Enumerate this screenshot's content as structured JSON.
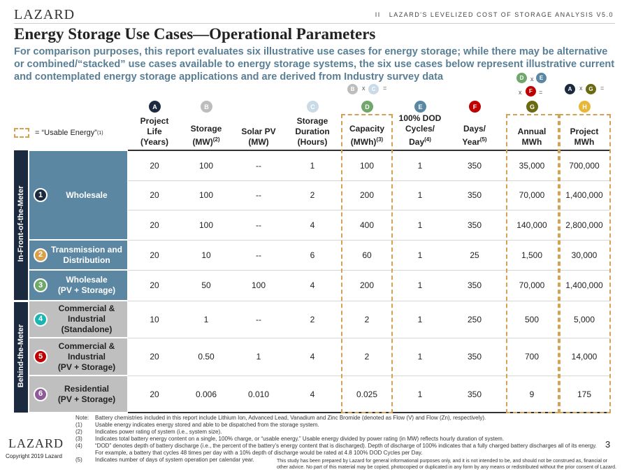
{
  "header": {
    "logo": "LAZARD",
    "section": "II   LAZARD'S LEVELIZED COST OF STORAGE ANALYSIS V5.0"
  },
  "title": "Energy Storage Use Cases—Operational Parameters",
  "subtitle": "For comparison purposes, this report evaluates six illustrative use cases for energy storage; while there may be alternative or combined/“stacked” use cases available to energy storage systems, the six use cases below represent illustrative current and contemplated energy storage applications and are derived from Industry survey data",
  "legend": {
    "label": "= “Usable Energy”",
    "sup": "(1)"
  },
  "colors": {
    "A": "#1c2a3f",
    "B": "#bdbdbd",
    "C": "#c9dbe7",
    "D": "#6fa86a",
    "E": "#5a87a4",
    "F": "#c00000",
    "G": "#6b6a12",
    "H": "#e8b73a",
    "usable_dash": "#d3a257",
    "ifm": "#5b87a3",
    "btm": "#bfbfbf",
    "band": "#1c2a3f"
  },
  "columns": [
    {
      "key": "A",
      "label": "Project\nLife\n(Years)",
      "sup": ""
    },
    {
      "key": "B",
      "label": "Storage\n(MW)",
      "sup": "(2)"
    },
    {
      "key": "",
      "label": "Solar PV\n(MW)",
      "sup": ""
    },
    {
      "key": "C",
      "label": "Storage\nDuration\n(Hours)",
      "sup": ""
    },
    {
      "key": "D",
      "label": "Capacity\n(MWh)",
      "sup": "(3)",
      "formula": [
        "B",
        "x",
        "C",
        "="
      ]
    },
    {
      "key": "E",
      "label": "100% DOD\nCycles/\nDay",
      "sup": "(4)"
    },
    {
      "key": "F",
      "label": "Days/\nYear",
      "sup": "(5)"
    },
    {
      "key": "G",
      "label": "Annual\nMWh",
      "sup": "",
      "formula": [
        "D",
        "x",
        "E",
        "x",
        "F",
        "="
      ]
    },
    {
      "key": "H",
      "label": "Project\nMWh",
      "sup": "",
      "formula": [
        "A",
        "x",
        "G",
        "="
      ]
    }
  ],
  "groups": [
    {
      "label": "In-Front-of-the-Meter"
    },
    {
      "label": "Behind-the-Meter"
    }
  ],
  "use_cases": [
    {
      "num": "1",
      "label": "Wholesale",
      "color": "#1c2a3f"
    },
    {
      "num": "2",
      "label": "Transmission and\nDistribution",
      "color": "#d9a04a"
    },
    {
      "num": "3",
      "label": "Wholesale\n(PV + Storage)",
      "color": "#6fa86a"
    },
    {
      "num": "4",
      "label": "Commercial &\nIndustrial\n(Standalone)",
      "color": "#1ab5b0"
    },
    {
      "num": "5",
      "label": "Commercial &\nIndustrial\n(PV + Storage)",
      "color": "#c00000"
    },
    {
      "num": "6",
      "label": "Residential\n(PV + Storage)",
      "color": "#8e5a9a"
    }
  ],
  "rows": [
    [
      "20",
      "100",
      "--",
      "1",
      "100",
      "1",
      "350",
      "35,000",
      "700,000"
    ],
    [
      "20",
      "100",
      "--",
      "2",
      "200",
      "1",
      "350",
      "70,000",
      "1,400,000"
    ],
    [
      "20",
      "100",
      "--",
      "4",
      "400",
      "1",
      "350",
      "140,000",
      "2,800,000"
    ],
    [
      "20",
      "10",
      "--",
      "6",
      "60",
      "1",
      "25",
      "1,500",
      "30,000"
    ],
    [
      "20",
      "50",
      "100",
      "4",
      "200",
      "1",
      "350",
      "70,000",
      "1,400,000"
    ],
    [
      "10",
      "1",
      "--",
      "2",
      "2",
      "1",
      "250",
      "500",
      "5,000"
    ],
    [
      "20",
      "0.50",
      "1",
      "4",
      "2",
      "1",
      "350",
      "700",
      "14,000"
    ],
    [
      "20",
      "0.006",
      "0.010",
      "4",
      "0.025",
      "1",
      "350",
      "9",
      "175"
    ]
  ],
  "notes": [
    [
      "Note:",
      "Battery chemistries included in this report include Lithium Ion, Advanced Lead, Vanadium and Zinc Bromide (denoted as Flow (V) and Flow (Zn), respectively)."
    ],
    [
      "(1)",
      "Usable energy indicates energy stored and able to be dispatched from the storage system."
    ],
    [
      "(2)",
      "Indicates power rating of system (i.e., system size)."
    ],
    [
      "(3)",
      "Indicates total battery energy content on a single, 100% charge, or “usable energy.” Usable energy divided by power rating (in MW) reflects hourly duration of system."
    ],
    [
      "(4)",
      "“DOD” denotes depth of battery discharge (i.e., the percent of the battery’s energy content that is discharged). Depth of discharge of 100% indicates that a fully charged battery discharges all of its energy. For example, a battery that cycles 48 times per day with a 10% depth of discharge would be rated at 4.8 100% DOD Cycles per Day."
    ],
    [
      "(5)",
      "Indicates number of days of system operation per calendar year."
    ]
  ],
  "footer": {
    "logo": "LAZARD",
    "copyright": "Copyright 2019 Lazard",
    "page": "3",
    "disclaimer": "This study has been prepared by Lazard for general informational purposes only, and it is not intended to be, and should not be construed as, financial or other advice. No part of this material may be copied, photocopied or duplicated in any form by any means or redistributed without the prior consent of Lazard."
  }
}
